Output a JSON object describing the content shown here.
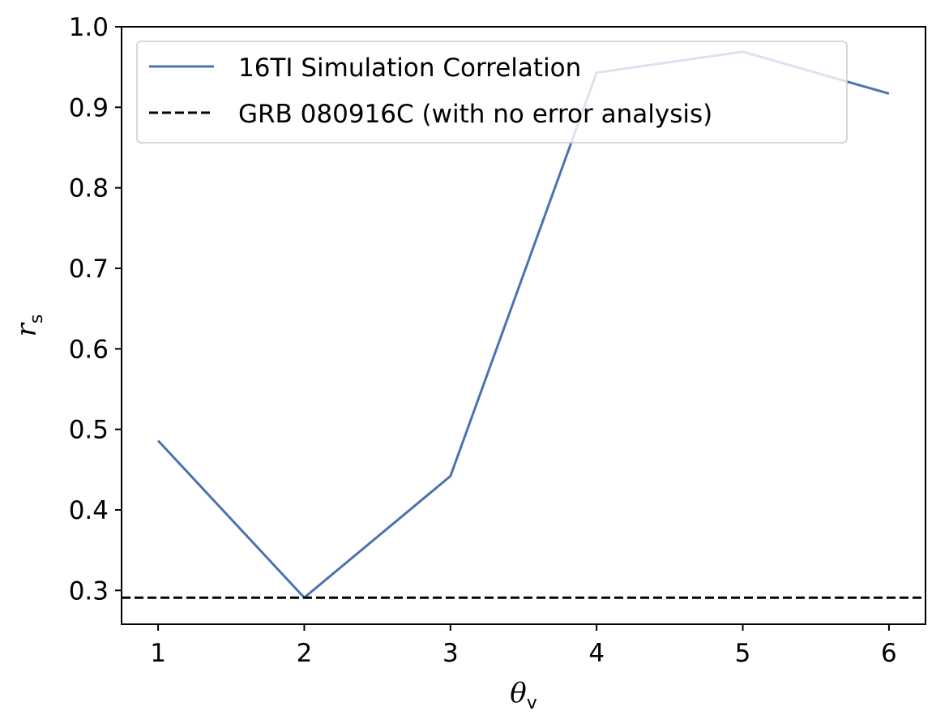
{
  "chart_data": {
    "type": "line",
    "title": "",
    "xlabel": {
      "symbol": "θ",
      "subscript": "v"
    },
    "ylabel": {
      "symbol": "r",
      "subscript": "s"
    },
    "xlim": [
      0.75,
      6.25
    ],
    "ylim": [
      0.258,
      1.0
    ],
    "x_ticks": [
      1,
      2,
      3,
      4,
      5,
      6
    ],
    "x_tick_labels": [
      "1",
      "2",
      "3",
      "4",
      "5",
      "6"
    ],
    "y_ticks": [
      0.3,
      0.4,
      0.5,
      0.6,
      0.7,
      0.8,
      0.9,
      1.0
    ],
    "y_tick_labels": [
      "0.3",
      "0.4",
      "0.5",
      "0.6",
      "0.7",
      "0.8",
      "0.9",
      "1.0"
    ],
    "grid": false,
    "legend_position": "upper-left",
    "series": [
      {
        "name": "16TI Simulation Correlation",
        "style": "solid",
        "color": "#4c72b0",
        "x": [
          1,
          2,
          3,
          4,
          5,
          6
        ],
        "y": [
          0.486,
          0.291,
          0.442,
          0.943,
          0.969,
          0.917
        ]
      },
      {
        "name": "GRB 080916C (with no error analysis)",
        "style": "dashed",
        "color": "#000000",
        "y": 0.291
      }
    ]
  }
}
